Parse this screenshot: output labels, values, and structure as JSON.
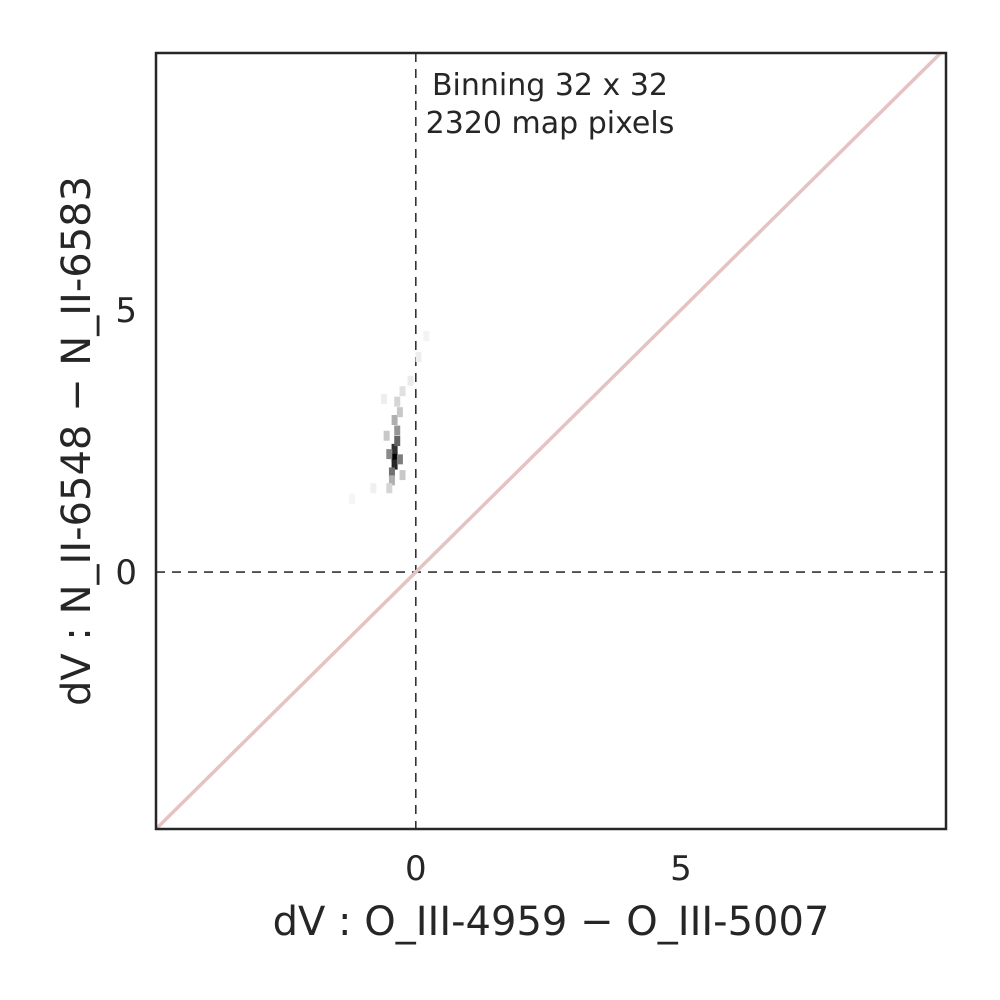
{
  "chart_data": {
    "type": "heatmap",
    "title": "",
    "xlabel": "dV : O_III-4959 − O_III-5007",
    "ylabel": "dV : N_II-6548 − N_II-6583",
    "xlim": [
      -4.9,
      10.0
    ],
    "ylim": [
      -4.9,
      9.9
    ],
    "xticks": [
      0,
      5
    ],
    "xtick_labels": [
      "0",
      "5"
    ],
    "yticks": [
      0,
      5
    ],
    "ytick_labels": [
      "0",
      "5"
    ],
    "grid": false,
    "annotations": [
      "Binning 32 x 32",
      "2320 map pixels"
    ],
    "reference_lines": [
      {
        "kind": "vertical",
        "x": 0,
        "style": "dashed",
        "color": "#333333"
      },
      {
        "kind": "horizontal",
        "y": 0,
        "style": "dashed",
        "color": "#333333"
      },
      {
        "kind": "identity",
        "slope": 1,
        "intercept": 0,
        "color": "#e6c3c3"
      }
    ],
    "density_cells": [
      {
        "x": -0.4,
        "y": 2.2,
        "density": 1.0
      },
      {
        "x": -0.4,
        "y": 2.05,
        "density": 0.85
      },
      {
        "x": -0.4,
        "y": 2.35,
        "density": 0.8
      },
      {
        "x": -0.35,
        "y": 2.5,
        "density": 0.6
      },
      {
        "x": -0.45,
        "y": 1.9,
        "density": 0.55
      },
      {
        "x": -0.3,
        "y": 2.15,
        "density": 0.5
      },
      {
        "x": -0.5,
        "y": 2.25,
        "density": 0.45
      },
      {
        "x": -0.35,
        "y": 2.7,
        "density": 0.4
      },
      {
        "x": -0.4,
        "y": 2.9,
        "density": 0.3
      },
      {
        "x": -0.45,
        "y": 1.75,
        "density": 0.3
      },
      {
        "x": -0.3,
        "y": 3.05,
        "density": 0.2
      },
      {
        "x": -0.35,
        "y": 3.25,
        "density": 0.15
      },
      {
        "x": -0.5,
        "y": 1.6,
        "density": 0.15
      },
      {
        "x": -0.25,
        "y": 3.45,
        "density": 0.1
      },
      {
        "x": -0.55,
        "y": 2.6,
        "density": 0.2
      },
      {
        "x": -0.25,
        "y": 1.85,
        "density": 0.2
      },
      {
        "x": -0.1,
        "y": 3.65,
        "density": 0.06
      },
      {
        "x": 0.05,
        "y": 4.1,
        "density": 0.05
      },
      {
        "x": 0.2,
        "y": 4.5,
        "density": 0.03
      },
      {
        "x": -0.8,
        "y": 1.6,
        "density": 0.04
      },
      {
        "x": -0.6,
        "y": 3.3,
        "density": 0.05
      },
      {
        "x": -1.2,
        "y": 1.4,
        "density": 0.02
      }
    ],
    "colormap": "greys"
  }
}
